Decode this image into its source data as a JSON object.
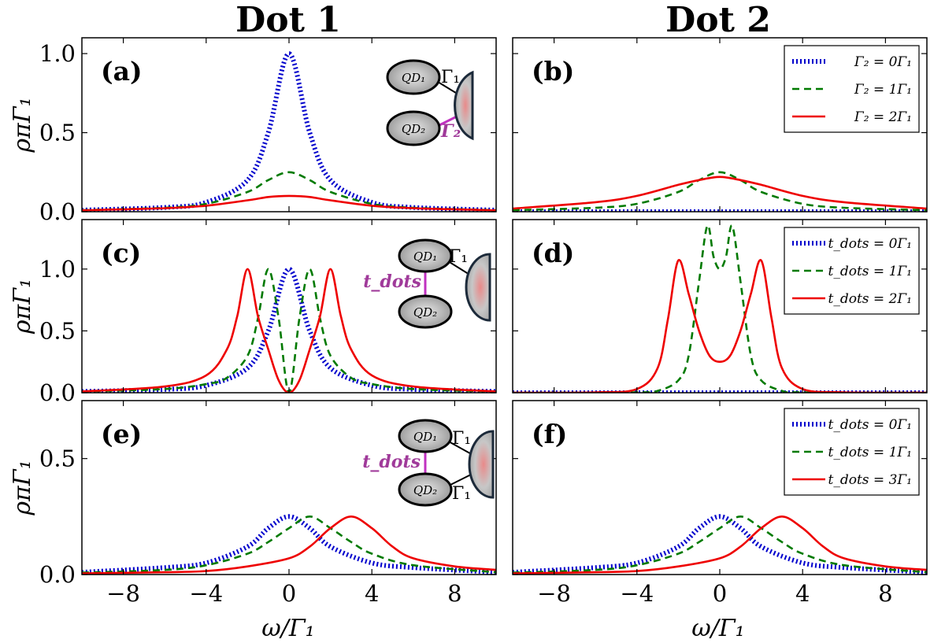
{
  "titles": {
    "left": "Dot 1",
    "right": "Dot 2"
  },
  "ylabel": "ρπΓ₁",
  "xlabel": "ω/Γ₁",
  "colors": {
    "blue": "#0000cc",
    "green": "#007a00",
    "red": "#ee0000",
    "magenta": "#c032c0"
  },
  "insets": {
    "a": {
      "qd1": "QD₁",
      "qd2": "QD₂",
      "g1": "Γ₁",
      "g2": "Γ₂"
    },
    "c": {
      "qd1": "QD₁",
      "qd2": "QD₂",
      "g1": "Γ₁",
      "t": "t_dots"
    },
    "e": {
      "qd1": "QD₁",
      "qd2": "QD₂",
      "g1a": "Γ₁",
      "g1b": "Γ₁",
      "t": "t_dots"
    }
  },
  "chart_data": [
    {
      "id": "a",
      "label": "(a)",
      "type": "line",
      "xlim": [
        -10,
        10
      ],
      "ylim": [
        0,
        1.1
      ],
      "xticks": [
        -8,
        -4,
        0,
        4,
        8
      ],
      "yticks": [
        "0.0",
        "0.5",
        "1.0"
      ],
      "xlabel": "",
      "ylabel": "ρπΓ₁",
      "series": [
        {
          "name": "",
          "style": "dotted",
          "color": "blue",
          "x": [
            -10,
            -6,
            -4,
            -2,
            -1,
            0,
            1,
            2,
            4,
            6,
            10
          ],
          "y": [
            0.01,
            0.027,
            0.059,
            0.2,
            0.5,
            1.0,
            0.5,
            0.2,
            0.059,
            0.027,
            0.01
          ]
        },
        {
          "name": "",
          "style": "dashed",
          "color": "green",
          "x": [
            -10,
            -6,
            -4,
            -2,
            -1,
            0,
            1,
            2,
            4,
            6,
            10
          ],
          "y": [
            0.01,
            0.025,
            0.05,
            0.125,
            0.2,
            0.25,
            0.2,
            0.125,
            0.05,
            0.025,
            0.01
          ]
        },
        {
          "name": "",
          "style": "solid",
          "color": "red",
          "x": [
            -10,
            -6,
            -4,
            -2,
            -1,
            0,
            1,
            2,
            4,
            6,
            10
          ],
          "y": [
            0.009,
            0.022,
            0.038,
            0.072,
            0.093,
            0.1,
            0.093,
            0.072,
            0.038,
            0.022,
            0.009
          ]
        }
      ]
    },
    {
      "id": "b",
      "label": "(b)",
      "type": "line",
      "xlim": [
        -10,
        10
      ],
      "ylim": [
        0,
        1.1
      ],
      "xticks": [
        -8,
        -4,
        0,
        4,
        8
      ],
      "yticks": [],
      "legend": {
        "placement": "top-right"
      },
      "series": [
        {
          "name": "Γ₂ = 0Γ₁",
          "style": "dotted",
          "color": "blue",
          "x": [
            -10,
            0,
            10
          ],
          "y": [
            0,
            0,
            0
          ]
        },
        {
          "name": "Γ₂ = 1Γ₁",
          "style": "dashed",
          "color": "green",
          "x": [
            -10,
            -6,
            -4,
            -2,
            -1,
            0,
            1,
            2,
            4,
            6,
            10
          ],
          "y": [
            0.01,
            0.025,
            0.05,
            0.125,
            0.2,
            0.25,
            0.2,
            0.125,
            0.05,
            0.025,
            0.01
          ]
        },
        {
          "name": "Γ₂ = 2Γ₁",
          "style": "solid",
          "color": "red",
          "x": [
            -10,
            -6,
            -4,
            -2,
            -1,
            0,
            1,
            2,
            4,
            6,
            10
          ],
          "y": [
            0.02,
            0.06,
            0.1,
            0.17,
            0.2,
            0.22,
            0.2,
            0.17,
            0.1,
            0.06,
            0.02
          ]
        }
      ]
    },
    {
      "id": "c",
      "label": "(c)",
      "type": "line",
      "xlim": [
        -10,
        10
      ],
      "ylim": [
        0,
        1.4
      ],
      "xticks": [
        -8,
        -4,
        0,
        4,
        8
      ],
      "yticks": [
        "0.0",
        "0.5",
        "1.0"
      ],
      "xlabel": "",
      "ylabel": "ρπΓ₁",
      "series": [
        {
          "name": "",
          "style": "dotted",
          "color": "blue",
          "x": [
            -10,
            -6,
            -4,
            -2,
            -1,
            0,
            1,
            2,
            4,
            6,
            10
          ],
          "y": [
            0.01,
            0.027,
            0.059,
            0.2,
            0.5,
            1.0,
            0.5,
            0.2,
            0.059,
            0.027,
            0.01
          ]
        },
        {
          "name": "",
          "style": "dashed",
          "color": "green",
          "x": [
            -10,
            -6,
            -4,
            -3,
            -2,
            -1.5,
            -1,
            -0.5,
            0,
            0.5,
            1,
            1.5,
            2,
            3,
            4,
            6,
            10
          ],
          "y": [
            0.01,
            0.03,
            0.07,
            0.12,
            0.3,
            0.6,
            1.0,
            0.6,
            0.0,
            0.6,
            1.0,
            0.6,
            0.3,
            0.12,
            0.07,
            0.03,
            0.01
          ]
        },
        {
          "name": "",
          "style": "solid",
          "color": "red",
          "x": [
            -10,
            -6,
            -4,
            -3,
            -2.5,
            -2,
            -1.5,
            -1,
            -0.5,
            0,
            0.5,
            1,
            1.5,
            2,
            2.5,
            3,
            4,
            6,
            10
          ],
          "y": [
            0.01,
            0.05,
            0.14,
            0.35,
            0.62,
            1.0,
            0.62,
            0.35,
            0.1,
            0.0,
            0.1,
            0.35,
            0.62,
            1.0,
            0.62,
            0.35,
            0.14,
            0.05,
            0.01
          ]
        }
      ]
    },
    {
      "id": "d",
      "label": "(d)",
      "type": "line",
      "xlim": [
        -10,
        10
      ],
      "ylim": [
        0,
        1.4
      ],
      "xticks": [
        -8,
        -4,
        0,
        4,
        8
      ],
      "yticks": [],
      "legend": {
        "placement": "top-right"
      },
      "series": [
        {
          "name": "t_dots = 0Γ₁",
          "style": "dotted",
          "color": "blue",
          "x": [
            -10,
            0,
            10
          ],
          "y": [
            0,
            0,
            0
          ]
        },
        {
          "name": "t_dots = 1Γ₁",
          "style": "dashed",
          "color": "green",
          "x": [
            -10,
            -4,
            -3,
            -2,
            -1.5,
            -1,
            -0.6,
            -0.3,
            0,
            0.3,
            0.6,
            1,
            1.5,
            2,
            3,
            4,
            10
          ],
          "y": [
            0,
            0.003,
            0.015,
            0.1,
            0.3,
            0.9,
            1.35,
            1.1,
            1.0,
            1.1,
            1.35,
            0.9,
            0.3,
            0.1,
            0.015,
            0.003,
            0
          ]
        },
        {
          "name": "t_dots = 2Γ₁",
          "style": "solid",
          "color": "red",
          "x": [
            -10,
            -6,
            -4,
            -3,
            -2.5,
            -2,
            -1.5,
            -1,
            -0.5,
            0,
            0.5,
            1,
            1.5,
            2,
            2.5,
            3,
            4,
            6,
            10
          ],
          "y": [
            0,
            0.003,
            0.03,
            0.2,
            0.6,
            1.07,
            0.8,
            0.5,
            0.3,
            0.25,
            0.3,
            0.5,
            0.8,
            1.07,
            0.6,
            0.2,
            0.03,
            0.003,
            0
          ]
        }
      ]
    },
    {
      "id": "e",
      "label": "(e)",
      "type": "line",
      "xlim": [
        -10,
        10
      ],
      "ylim": [
        0,
        0.75
      ],
      "xticks": [
        -8,
        -4,
        0,
        4,
        8
      ],
      "yticks": [
        "0.0",
        "0.5"
      ],
      "xlabel": "ω/Γ₁",
      "ylabel": "ρπΓ₁",
      "series": [
        {
          "name": "",
          "style": "dotted",
          "color": "blue",
          "x": [
            -10,
            -6,
            -4,
            -2,
            -1,
            0,
            1,
            2,
            4,
            6,
            10
          ],
          "y": [
            0.01,
            0.03,
            0.05,
            0.12,
            0.2,
            0.25,
            0.2,
            0.12,
            0.05,
            0.03,
            0.01
          ]
        },
        {
          "name": "",
          "style": "dashed",
          "color": "green",
          "x": [
            -10,
            -6,
            -4,
            -2,
            -1,
            0,
            1,
            2,
            3,
            4,
            6,
            10
          ],
          "y": [
            0.008,
            0.02,
            0.04,
            0.09,
            0.14,
            0.2,
            0.25,
            0.2,
            0.14,
            0.09,
            0.04,
            0.01
          ]
        },
        {
          "name": "",
          "style": "solid",
          "color": "red",
          "x": [
            -10,
            -6,
            -4,
            -2,
            0,
            1,
            2,
            3,
            4,
            5,
            6,
            8,
            10
          ],
          "y": [
            0.005,
            0.01,
            0.015,
            0.035,
            0.07,
            0.12,
            0.2,
            0.25,
            0.2,
            0.12,
            0.07,
            0.035,
            0.02
          ]
        }
      ]
    },
    {
      "id": "f",
      "label": "(f)",
      "type": "line",
      "xlim": [
        -10,
        10
      ],
      "ylim": [
        0,
        0.75
      ],
      "xticks": [
        -8,
        -4,
        0,
        4,
        8
      ],
      "yticks": [],
      "xlabel": "ω/Γ₁",
      "legend": {
        "placement": "top-right"
      },
      "series": [
        {
          "name": "t_dots = 0Γ₁",
          "style": "dotted",
          "color": "blue",
          "x": [
            -10,
            -6,
            -4,
            -2,
            -1,
            0,
            1,
            2,
            4,
            6,
            10
          ],
          "y": [
            0.01,
            0.03,
            0.05,
            0.12,
            0.2,
            0.25,
            0.2,
            0.12,
            0.05,
            0.03,
            0.01
          ]
        },
        {
          "name": "t_dots = 1Γ₁",
          "style": "dashed",
          "color": "green",
          "x": [
            -10,
            -6,
            -4,
            -2,
            -1,
            0,
            1,
            2,
            3,
            4,
            6,
            10
          ],
          "y": [
            0.008,
            0.02,
            0.04,
            0.09,
            0.14,
            0.2,
            0.25,
            0.2,
            0.14,
            0.09,
            0.04,
            0.01
          ]
        },
        {
          "name": "t_dots = 3Γ₁",
          "style": "solid",
          "color": "red",
          "x": [
            -10,
            -6,
            -4,
            -2,
            0,
            1,
            2,
            3,
            4,
            5,
            6,
            8,
            10
          ],
          "y": [
            0.005,
            0.01,
            0.015,
            0.035,
            0.07,
            0.12,
            0.2,
            0.25,
            0.2,
            0.12,
            0.07,
            0.035,
            0.02
          ]
        }
      ]
    }
  ]
}
